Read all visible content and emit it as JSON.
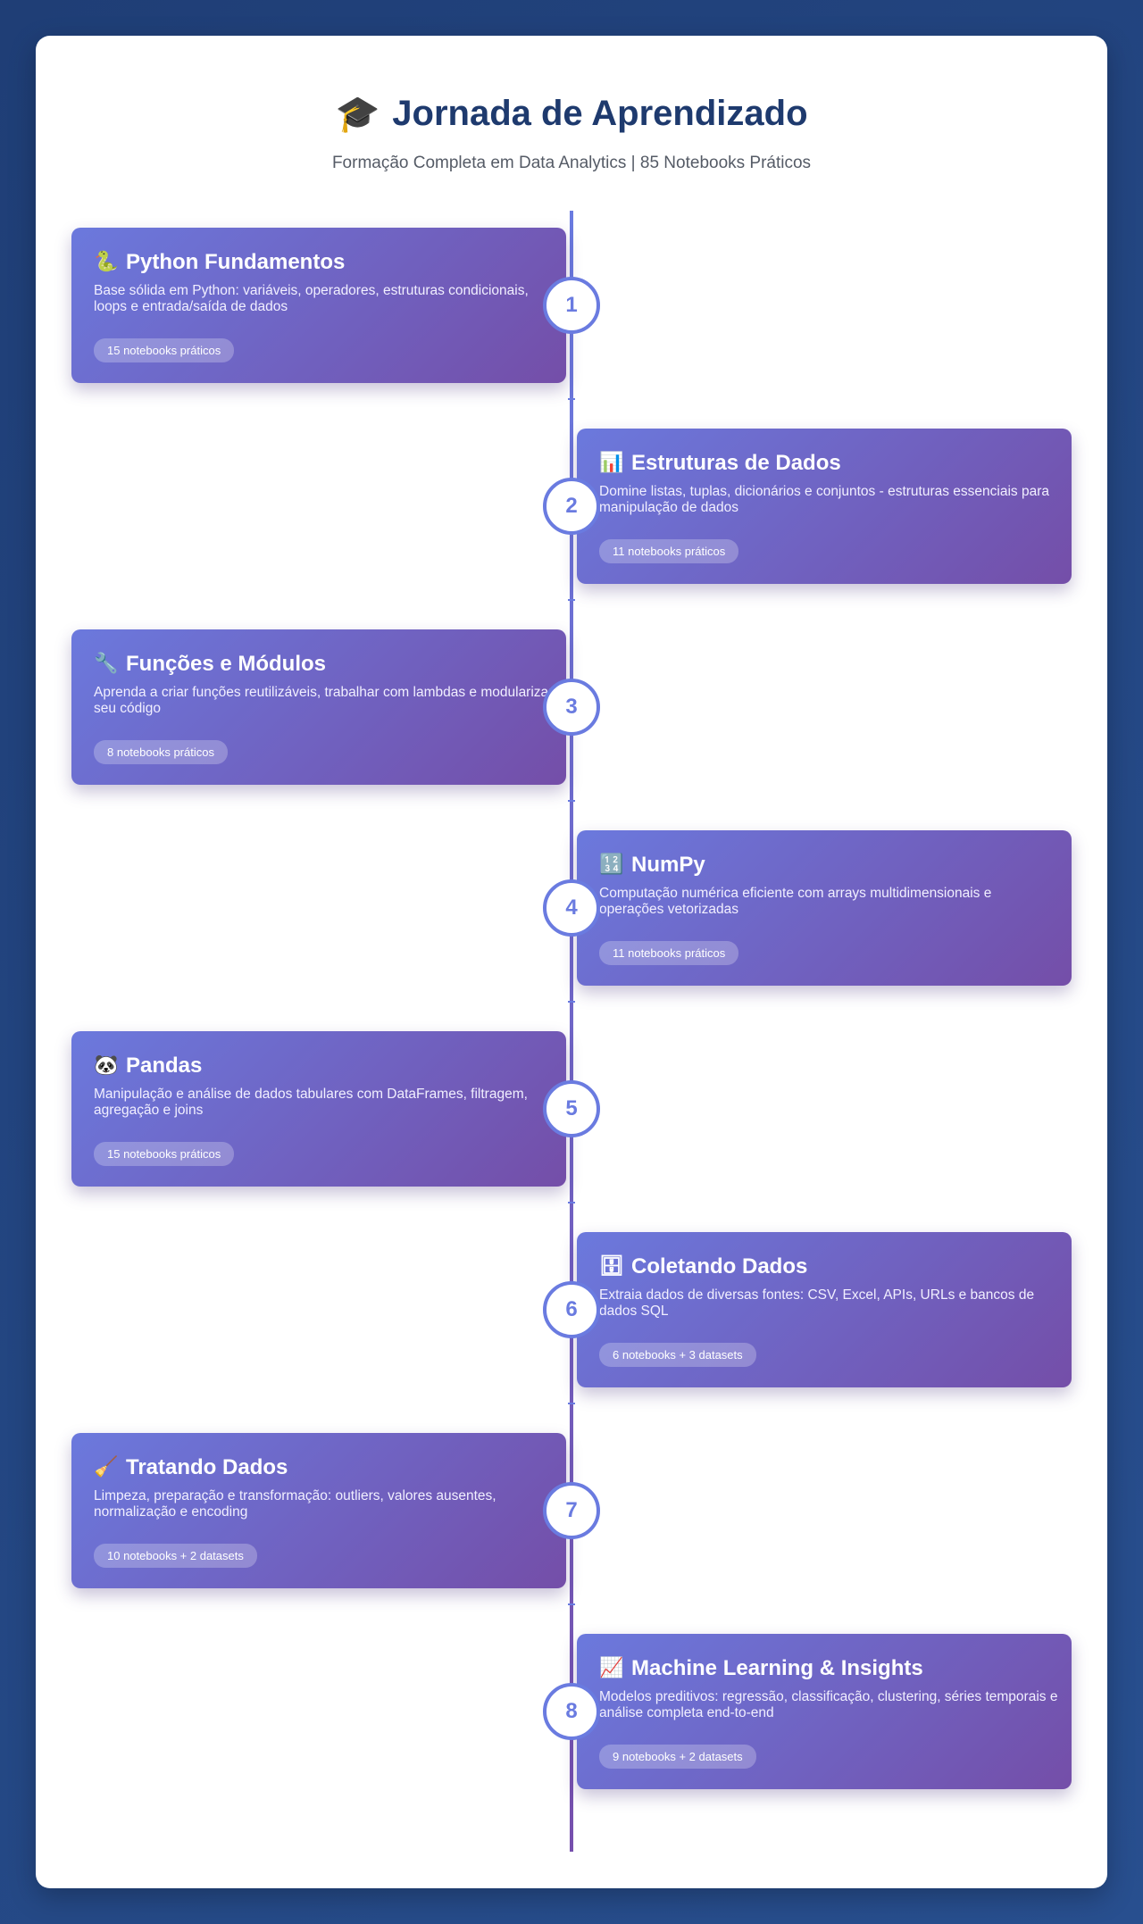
{
  "header": {
    "icon": "graduation-cap-icon",
    "icon_glyph": "🎓",
    "title": "Jornada de Aprendizado",
    "subtitle": "Formação Completa em Data Analytics | 85 Notebooks Práticos"
  },
  "colors": {
    "background": "#234785",
    "card_gradient_start": "#6b79dd",
    "card_gradient_end": "#744ea8",
    "title": "#1e3a6e",
    "accent": "#6a7be0"
  },
  "steps": [
    {
      "number": "1",
      "icon": "snake-icon",
      "glyph": "🐍",
      "title": "Python Fundamentos",
      "description": "Base sólida em Python: variáveis, operadores, estruturas condicionais, loops e entrada/saída de dados",
      "badge": "15 notebooks práticos"
    },
    {
      "number": "2",
      "icon": "bar-chart-icon",
      "glyph": "📊",
      "title": "Estruturas de Dados",
      "description": "Domine listas, tuplas, dicionários e conjuntos - estruturas essenciais para manipulação de dados",
      "badge": "11 notebooks práticos"
    },
    {
      "number": "3",
      "icon": "wrench-icon",
      "glyph": "🔧",
      "title": "Funções e Módulos",
      "description": "Aprenda a criar funções reutilizáveis, trabalhar com lambdas e modularizar seu código",
      "badge": "8 notebooks práticos"
    },
    {
      "number": "4",
      "icon": "numbers-icon",
      "glyph": "🔢",
      "title": "NumPy",
      "description": "Computação numérica eficiente com arrays multidimensionais e operações vetorizadas",
      "badge": "11 notebooks práticos"
    },
    {
      "number": "5",
      "icon": "panda-icon",
      "glyph": "🐼",
      "title": "Pandas",
      "description": "Manipulação e análise de dados tabulares com DataFrames, filtragem, agregação e joins",
      "badge": "15 notebooks práticos"
    },
    {
      "number": "6",
      "icon": "file-cabinet-icon",
      "glyph": "🗄",
      "title": "Coletando Dados",
      "description": "Extraia dados de diversas fontes: CSV, Excel, APIs, URLs e bancos de dados SQL",
      "badge": "6 notebooks + 3 datasets"
    },
    {
      "number": "7",
      "icon": "broom-icon",
      "glyph": "🧹",
      "title": "Tratando Dados",
      "description": "Limpeza, preparação e transformação: outliers, valores ausentes, normalização e encoding",
      "badge": "10 notebooks + 2 datasets"
    },
    {
      "number": "8",
      "icon": "trend-chart-icon",
      "glyph": "📈",
      "title": "Machine Learning & Insights",
      "description": "Modelos preditivos: regressão, classificação, clustering, séries temporais e análise completa end-to-end",
      "badge": "9 notebooks + 2 datasets"
    }
  ]
}
